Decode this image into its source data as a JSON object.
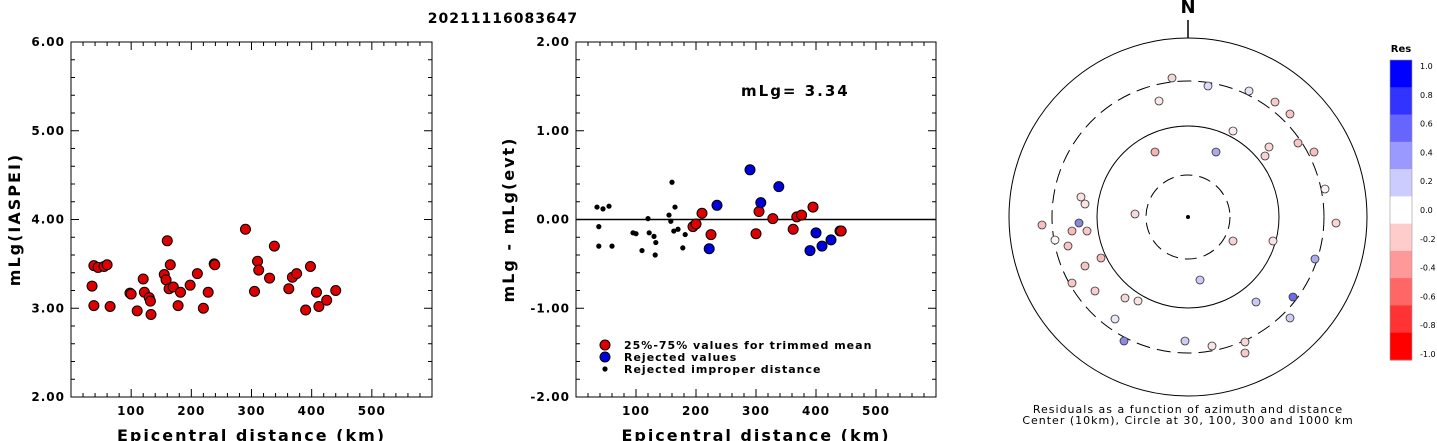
{
  "title": "20211116083647",
  "chart_data": [
    {
      "type": "scatter",
      "xlabel": "Epicentral distance (km)",
      "ylabel": "mLg(IASPEI)",
      "xlim": [
        0,
        600
      ],
      "ylim": [
        2.0,
        6.0
      ],
      "xticks": [
        "100",
        "200",
        "300",
        "400",
        "500"
      ],
      "yticks": [
        "2.00",
        "3.00",
        "4.00",
        "5.00",
        "6.00"
      ],
      "series": [
        {
          "color": "#dd0000",
          "points": [
            [
              38,
              3.48
            ],
            [
              45,
              3.46
            ],
            [
              55,
              3.47
            ],
            [
              60,
              3.49
            ],
            [
              35,
              3.25
            ],
            [
              38,
              3.03
            ],
            [
              65,
              3.02
            ],
            [
              98,
              3.17
            ],
            [
              100,
              3.16
            ],
            [
              110,
              2.97
            ],
            [
              120,
              3.33
            ],
            [
              122,
              3.18
            ],
            [
              130,
              3.12
            ],
            [
              132,
              3.08
            ],
            [
              133,
              2.93
            ],
            [
              155,
              3.38
            ],
            [
              158,
              3.32
            ],
            [
              160,
              3.76
            ],
            [
              163,
              3.22
            ],
            [
              165,
              3.49
            ],
            [
              170,
              3.24
            ],
            [
              178,
              3.03
            ],
            [
              182,
              3.18
            ],
            [
              198,
              3.26
            ],
            [
              210,
              3.39
            ],
            [
              220,
              3.0
            ],
            [
              228,
              3.18
            ],
            [
              238,
              3.5
            ],
            [
              239,
              3.49
            ],
            [
              290,
              3.89
            ],
            [
              305,
              3.19
            ],
            [
              310,
              3.53
            ],
            [
              312,
              3.43
            ],
            [
              330,
              3.34
            ],
            [
              338,
              3.7
            ],
            [
              362,
              3.22
            ],
            [
              368,
              3.35
            ],
            [
              375,
              3.39
            ],
            [
              390,
              2.98
            ],
            [
              398,
              3.47
            ],
            [
              408,
              3.18
            ],
            [
              412,
              3.02
            ],
            [
              425,
              3.09
            ],
            [
              440,
              3.2
            ]
          ]
        }
      ]
    },
    {
      "type": "scatter",
      "xlabel": "Epicentral distance (km)",
      "ylabel": "mLg - mLg(evt)",
      "xlim": [
        0,
        600
      ],
      "ylim": [
        -2.0,
        2.0
      ],
      "xticks": [
        "100",
        "200",
        "300",
        "400",
        "500"
      ],
      "yticks": [
        "-2.00",
        "-1.00",
        "0.00",
        "1.00",
        "2.00"
      ],
      "annotation": "mLg= 3.34",
      "reference_line": 0,
      "legend": {
        "placement": "bottom-left",
        "entries": [
          {
            "label": "25%-75% values for trimmed mean",
            "color": "#dd0000",
            "marker": "large"
          },
          {
            "label": "Rejected values",
            "color": "#0000dd",
            "marker": "large"
          },
          {
            "label": "Rejected improper distance",
            "color": "#000000",
            "marker": "small"
          }
        ]
      },
      "series": [
        {
          "name": "25%-75% values for trimmed mean",
          "color": "#dd0000",
          "points": [
            [
              195,
              -0.08
            ],
            [
              200,
              -0.05
            ],
            [
              210,
              0.07
            ],
            [
              225,
              -0.17
            ],
            [
              300,
              -0.16
            ],
            [
              305,
              0.09
            ],
            [
              328,
              0.01
            ],
            [
              362,
              -0.11
            ],
            [
              368,
              0.03
            ],
            [
              376,
              0.05
            ],
            [
              395,
              0.14
            ],
            [
              440,
              -0.13
            ],
            [
              442,
              -0.13
            ]
          ]
        },
        {
          "name": "Rejected values",
          "color": "#0000dd",
          "points": [
            [
              222,
              -0.33
            ],
            [
              235,
              0.16
            ],
            [
              290,
              0.56
            ],
            [
              308,
              0.19
            ],
            [
              338,
              0.37
            ],
            [
              390,
              -0.35
            ],
            [
              400,
              -0.15
            ],
            [
              410,
              -0.3
            ],
            [
              425,
              -0.23
            ]
          ]
        },
        {
          "name": "Rejected improper distance",
          "color": "#000000",
          "points": [
            [
              35,
              0.14
            ],
            [
              38,
              -0.08
            ],
            [
              38,
              -0.3
            ],
            [
              45,
              0.12
            ],
            [
              55,
              0.15
            ],
            [
              60,
              -0.3
            ],
            [
              95,
              -0.15
            ],
            [
              100,
              -0.16
            ],
            [
              110,
              -0.35
            ],
            [
              120,
              0.01
            ],
            [
              122,
              -0.15
            ],
            [
              130,
              -0.19
            ],
            [
              132,
              -0.4
            ],
            [
              133,
              -0.26
            ],
            [
              155,
              0.05
            ],
            [
              158,
              -0.02
            ],
            [
              160,
              0.42
            ],
            [
              163,
              -0.13
            ],
            [
              165,
              0.14
            ],
            [
              170,
              -0.11
            ],
            [
              178,
              -0.32
            ],
            [
              182,
              -0.17
            ]
          ]
        }
      ]
    },
    {
      "type": "scatter",
      "title": "N",
      "caption1": "Residuals as a function of azimuth and distance",
      "caption2": "Center (10km), Circle at 30, 100, 300 and 1000 km",
      "colorbar": {
        "title": "Res",
        "labels": [
          "1.0",
          "0.8",
          "0.6",
          "0.4",
          "0.2",
          "0.0",
          "-0.2",
          "-0.4",
          "-0.6",
          "-0.8",
          "-1.0"
        ],
        "colors": [
          "#0000ff",
          "#3333ff",
          "#6666ff",
          "#9999ff",
          "#ccccff",
          "#ffffff",
          "#ffcccc",
          "#ff9999",
          "#ff6666",
          "#ff3333",
          "#ff0000"
        ]
      },
      "stations": [
        [
          1172,
          78,
          "#f4d8d8"
        ],
        [
          1208,
          86,
          "#dcdcf8"
        ],
        [
          1249,
          91,
          "#e4e4f6"
        ],
        [
          1159,
          101,
          "#fae8e8"
        ],
        [
          1275,
          102,
          "#f7c9c9"
        ],
        [
          1290,
          114,
          "#f6c4c4"
        ],
        [
          1233,
          131,
          "#fbeaea"
        ],
        [
          1298,
          143,
          "#f7c7c7"
        ],
        [
          1269,
          147,
          "#f9d6d6"
        ],
        [
          1265,
          156,
          "#f8d3d3"
        ],
        [
          1155,
          152,
          "#f5b3b3"
        ],
        [
          1216,
          152,
          "#aaaaea"
        ],
        [
          1314,
          152,
          "#f7c0c0"
        ],
        [
          1325,
          189,
          "#fdf3f3"
        ],
        [
          1081,
          197,
          "#fae3e3"
        ],
        [
          1085,
          204,
          "#fae3e3"
        ],
        [
          1135,
          214,
          "#f9d9d9"
        ],
        [
          1336,
          223,
          "#f9d4d4"
        ],
        [
          1042,
          225,
          "#f7c0c0"
        ],
        [
          1079,
          223,
          "#8888dd"
        ],
        [
          1072,
          231,
          "#f6bcbc"
        ],
        [
          1087,
          231,
          "#f8c8c8"
        ],
        [
          1055,
          240,
          "#fdf5f5"
        ],
        [
          1068,
          246,
          "#f7c5c5"
        ],
        [
          1233,
          241,
          "#f8d2d2"
        ],
        [
          1273,
          241,
          "#fae1e1"
        ],
        [
          1101,
          258,
          "#f6bbbb"
        ],
        [
          1085,
          266,
          "#f7c4c4"
        ],
        [
          1315,
          259,
          "#aaaaee"
        ],
        [
          1200,
          280,
          "#ccccf4"
        ],
        [
          1072,
          283,
          "#f7c7c7"
        ],
        [
          1095,
          291,
          "#f8cece"
        ],
        [
          1293,
          297,
          "#6d6de8"
        ],
        [
          1125,
          298,
          "#f3d6d6"
        ],
        [
          1256,
          302,
          "#c8c8f2"
        ],
        [
          1138,
          301,
          "#fae3e3"
        ],
        [
          1115,
          319,
          "#e8e8f8"
        ],
        [
          1290,
          318,
          "#ccccf2"
        ],
        [
          1185,
          341,
          "#ccccf0"
        ],
        [
          1124,
          341,
          "#8a8ae0"
        ],
        [
          1245,
          342,
          "#f9d6d6"
        ],
        [
          1212,
          346,
          "#fce3e3"
        ],
        [
          1245,
          353,
          "#f7c9c9"
        ]
      ]
    }
  ]
}
